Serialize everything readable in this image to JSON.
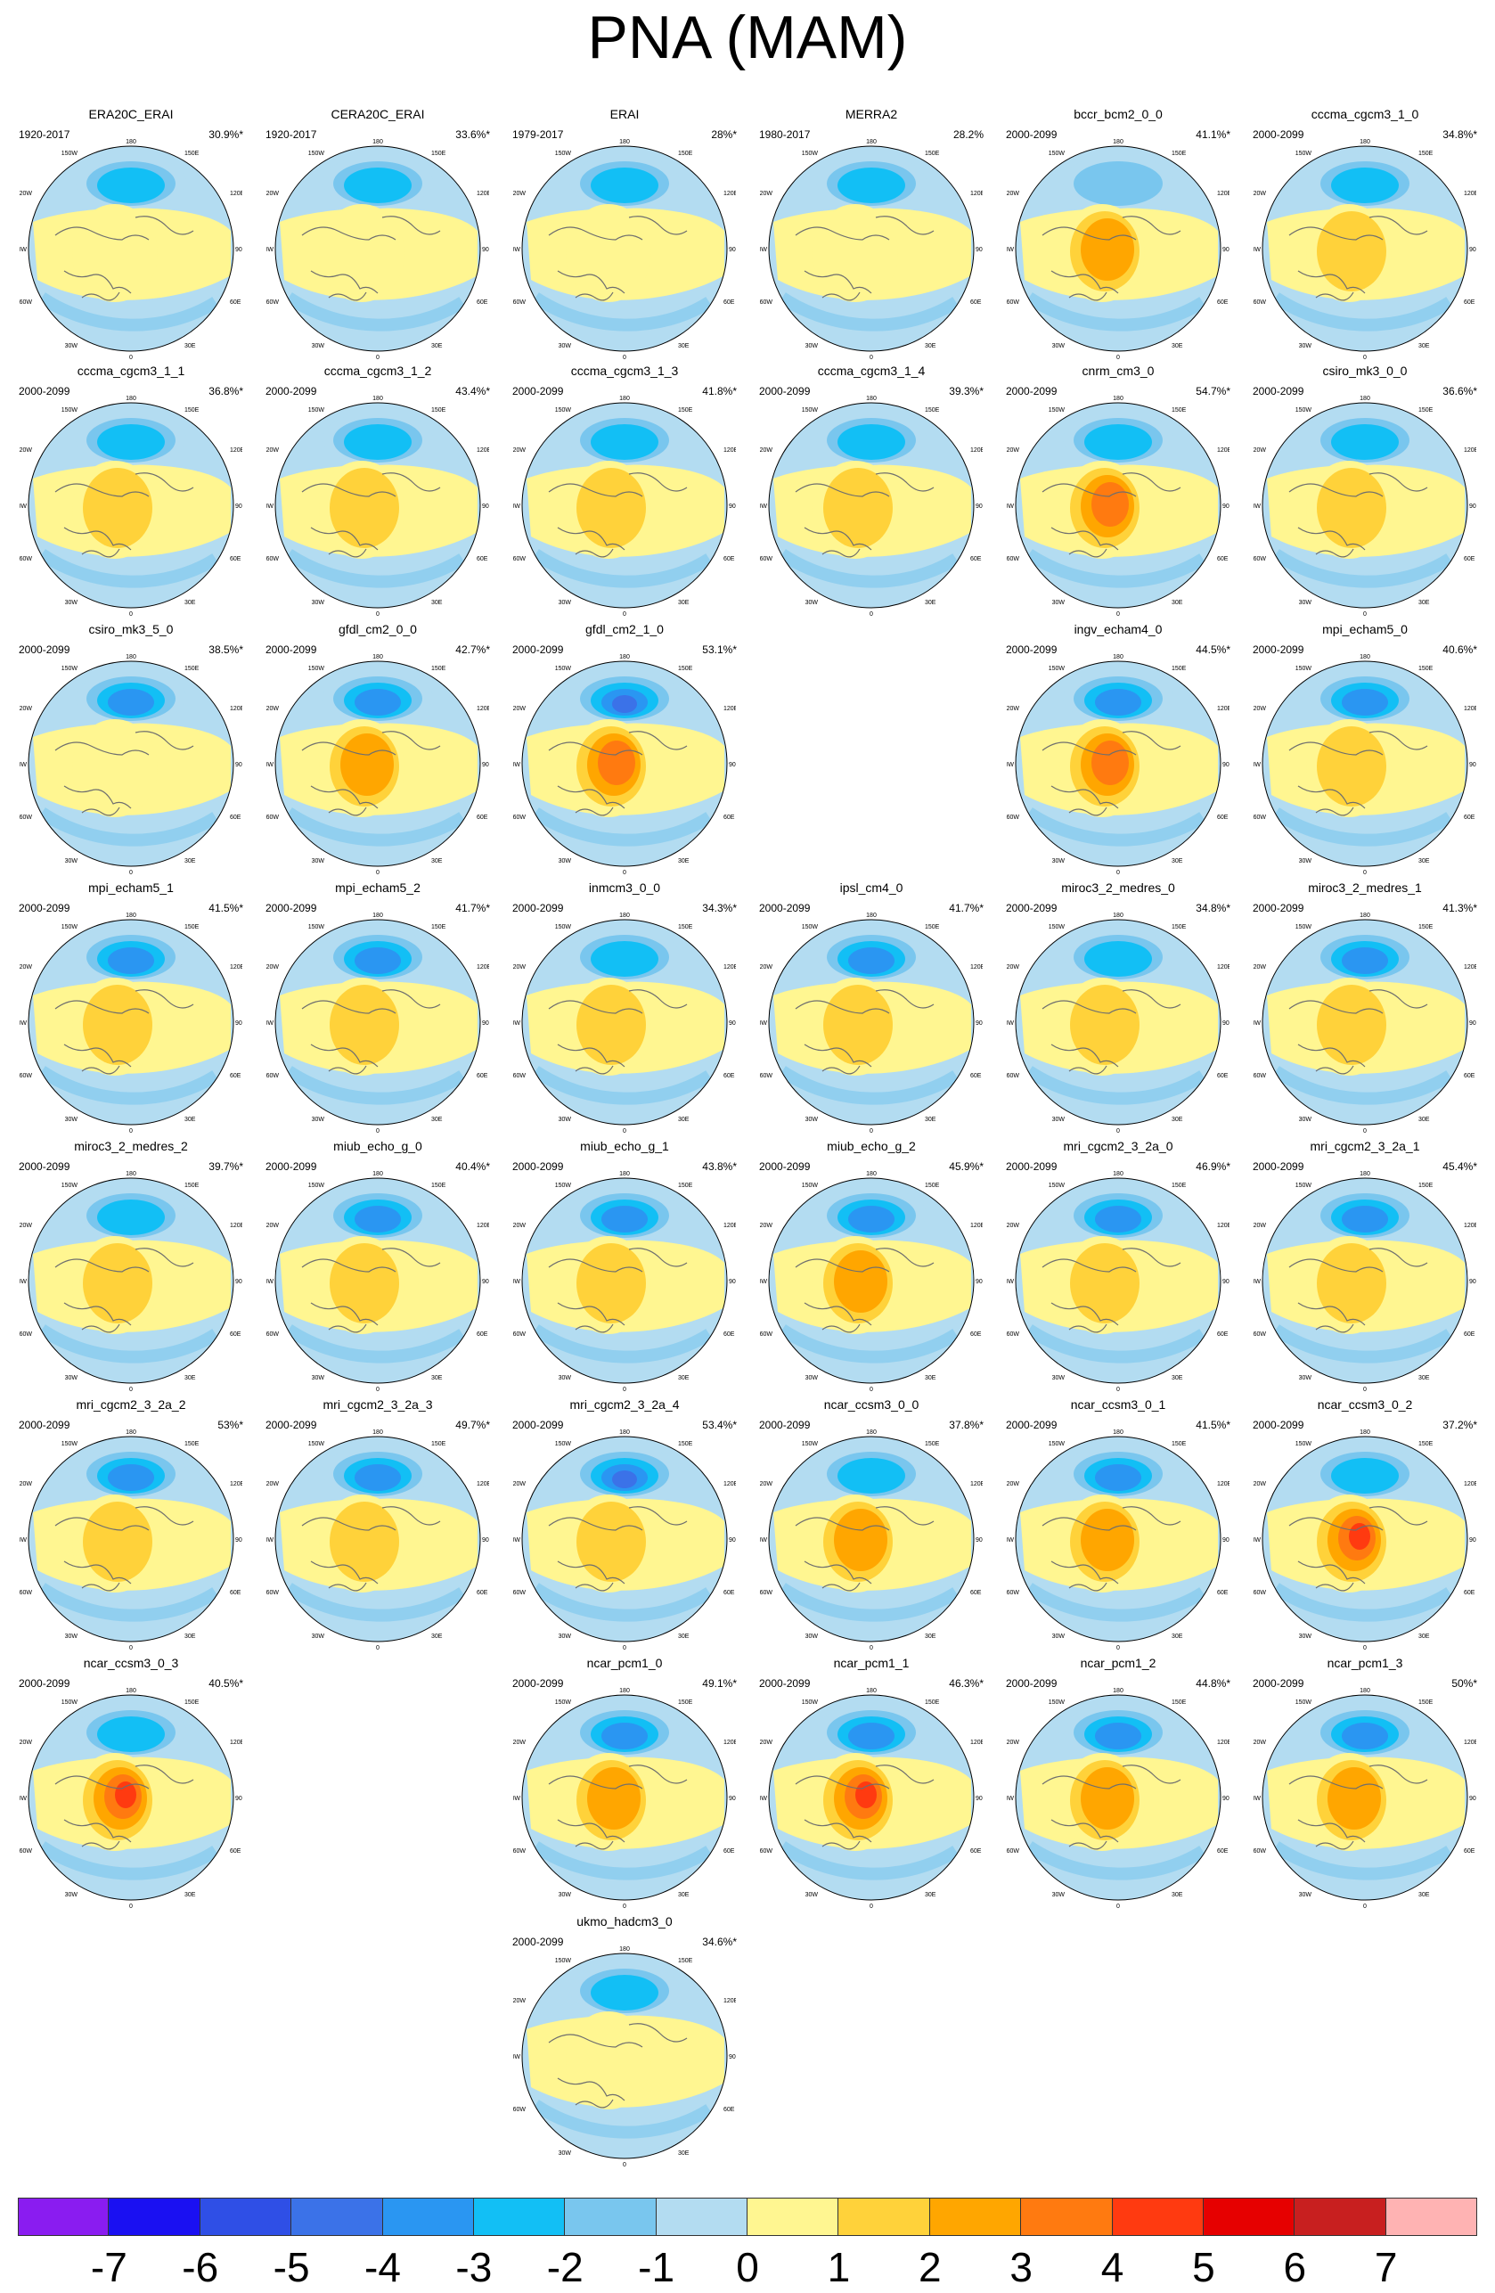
{
  "title": "PNA (MAM)",
  "colors": {
    "land_outline": "#6e6e6e",
    "map_border": "#000000",
    "levels": [
      "#8a1cf0",
      "#1a10f2",
      "#2f4fe6",
      "#3b72e8",
      "#2a96f2",
      "#12bff5",
      "#79c6ee",
      "#b3dcf1",
      "#fff691",
      "#ffd23a",
      "#ffa600",
      "#ff7a10",
      "#ff3a10",
      "#e60000",
      "#c81f1f",
      "#ffb3b3"
    ]
  },
  "chart_data": {
    "type": "heatmap",
    "description_visible": "Polar stereographic maps of the PNA pattern for each dataset",
    "colorbar": {
      "labels": [
        "-7",
        "-6",
        "-5",
        "-4",
        "-3",
        "-2",
        "-1",
        "0",
        "1",
        "2",
        "3",
        "4",
        "5",
        "6",
        "7"
      ]
    },
    "map_labels": {
      "top": "180",
      "top_left": "150W",
      "top_right": "150E",
      "upper_left": "120W",
      "upper_right": "120E",
      "left": "90W",
      "right": "90E",
      "lower_left": "60W",
      "lower_right": "60E",
      "bottom_left": "30W",
      "bottom_right": "30E",
      "bottom": "0"
    },
    "panels": [
      {
        "name": "ERA20C_ERAI",
        "years": "1920-2017",
        "pct": "30.9%*",
        "row": 0,
        "col": 0,
        "neg": 3,
        "pos": 1
      },
      {
        "name": "CERA20C_ERAI",
        "years": "1920-2017",
        "pct": "33.6%*",
        "row": 0,
        "col": 1,
        "neg": 3,
        "pos": 1
      },
      {
        "name": "ERAI",
        "years": "1979-2017",
        "pct": "28%*",
        "row": 0,
        "col": 2,
        "neg": 3,
        "pos": 1
      },
      {
        "name": "MERRA2",
        "years": "1980-2017",
        "pct": "28.2%",
        "row": 0,
        "col": 3,
        "neg": 3,
        "pos": 1
      },
      {
        "name": "bccr_bcm2_0_0",
        "years": "2000-2099",
        "pct": "41.1%*",
        "row": 0,
        "col": 4,
        "neg": 2,
        "pos": 3
      },
      {
        "name": "cccma_cgcm3_1_0",
        "years": "2000-2099",
        "pct": "34.8%*",
        "row": 0,
        "col": 5,
        "neg": 3,
        "pos": 2
      },
      {
        "name": "cccma_cgcm3_1_1",
        "years": "2000-2099",
        "pct": "36.8%*",
        "row": 1,
        "col": 0,
        "neg": 3,
        "pos": 2
      },
      {
        "name": "cccma_cgcm3_1_2",
        "years": "2000-2099",
        "pct": "43.4%*",
        "row": 1,
        "col": 1,
        "neg": 3,
        "pos": 2
      },
      {
        "name": "cccma_cgcm3_1_3",
        "years": "2000-2099",
        "pct": "41.8%*",
        "row": 1,
        "col": 2,
        "neg": 3,
        "pos": 2
      },
      {
        "name": "cccma_cgcm3_1_4",
        "years": "2000-2099",
        "pct": "39.3%*",
        "row": 1,
        "col": 3,
        "neg": 3,
        "pos": 2
      },
      {
        "name": "cnrm_cm3_0",
        "years": "2000-2099",
        "pct": "54.7%*",
        "row": 1,
        "col": 4,
        "neg": 3,
        "pos": 4
      },
      {
        "name": "csiro_mk3_0_0",
        "years": "2000-2099",
        "pct": "36.6%*",
        "row": 1,
        "col": 5,
        "neg": 3,
        "pos": 2
      },
      {
        "name": "csiro_mk3_5_0",
        "years": "2000-2099",
        "pct": "38.5%*",
        "row": 2,
        "col": 0,
        "neg": 4,
        "pos": 1
      },
      {
        "name": "gfdl_cm2_0_0",
        "years": "2000-2099",
        "pct": "42.7%*",
        "row": 2,
        "col": 1,
        "neg": 4,
        "pos": 3
      },
      {
        "name": "gfdl_cm2_1_0",
        "years": "2000-2099",
        "pct": "53.1%*",
        "row": 2,
        "col": 2,
        "neg": 5,
        "pos": 4
      },
      {
        "name": "ingv_echam4_0",
        "years": "2000-2099",
        "pct": "44.5%*",
        "row": 2,
        "col": 4,
        "neg": 4,
        "pos": 4
      },
      {
        "name": "mpi_echam5_0",
        "years": "2000-2099",
        "pct": "40.6%*",
        "row": 2,
        "col": 5,
        "neg": 4,
        "pos": 2
      },
      {
        "name": "mpi_echam5_1",
        "years": "2000-2099",
        "pct": "41.5%*",
        "row": 3,
        "col": 0,
        "neg": 4,
        "pos": 2
      },
      {
        "name": "mpi_echam5_2",
        "years": "2000-2099",
        "pct": "41.7%*",
        "row": 3,
        "col": 1,
        "neg": 4,
        "pos": 2
      },
      {
        "name": "inmcm3_0_0",
        "years": "2000-2099",
        "pct": "34.3%*",
        "row": 3,
        "col": 2,
        "neg": 3,
        "pos": 2
      },
      {
        "name": "ipsl_cm4_0",
        "years": "2000-2099",
        "pct": "41.7%*",
        "row": 3,
        "col": 3,
        "neg": 4,
        "pos": 2
      },
      {
        "name": "miroc3_2_medres_0",
        "years": "2000-2099",
        "pct": "34.8%*",
        "row": 3,
        "col": 4,
        "neg": 3,
        "pos": 2
      },
      {
        "name": "miroc3_2_medres_1",
        "years": "2000-2099",
        "pct": "41.3%*",
        "row": 3,
        "col": 5,
        "neg": 4,
        "pos": 2
      },
      {
        "name": "miroc3_2_medres_2",
        "years": "2000-2099",
        "pct": "39.7%*",
        "row": 4,
        "col": 0,
        "neg": 3,
        "pos": 2
      },
      {
        "name": "miub_echo_g_0",
        "years": "2000-2099",
        "pct": "40.4%*",
        "row": 4,
        "col": 1,
        "neg": 4,
        "pos": 2
      },
      {
        "name": "miub_echo_g_1",
        "years": "2000-2099",
        "pct": "43.8%*",
        "row": 4,
        "col": 2,
        "neg": 4,
        "pos": 2
      },
      {
        "name": "miub_echo_g_2",
        "years": "2000-2099",
        "pct": "45.9%*",
        "row": 4,
        "col": 3,
        "neg": 4,
        "pos": 3
      },
      {
        "name": "mri_cgcm2_3_2a_0",
        "years": "2000-2099",
        "pct": "46.9%*",
        "row": 4,
        "col": 4,
        "neg": 4,
        "pos": 2
      },
      {
        "name": "mri_cgcm2_3_2a_1",
        "years": "2000-2099",
        "pct": "45.4%*",
        "row": 4,
        "col": 5,
        "neg": 4,
        "pos": 2
      },
      {
        "name": "mri_cgcm2_3_2a_2",
        "years": "2000-2099",
        "pct": "53%*",
        "row": 5,
        "col": 0,
        "neg": 4,
        "pos": 2
      },
      {
        "name": "mri_cgcm2_3_2a_3",
        "years": "2000-2099",
        "pct": "49.7%*",
        "row": 5,
        "col": 1,
        "neg": 4,
        "pos": 2
      },
      {
        "name": "mri_cgcm2_3_2a_4",
        "years": "2000-2099",
        "pct": "53.4%*",
        "row": 5,
        "col": 2,
        "neg": 5,
        "pos": 2
      },
      {
        "name": "ncar_ccsm3_0_0",
        "years": "2000-2099",
        "pct": "37.8%*",
        "row": 5,
        "col": 3,
        "neg": 3,
        "pos": 3
      },
      {
        "name": "ncar_ccsm3_0_1",
        "years": "2000-2099",
        "pct": "41.5%*",
        "row": 5,
        "col": 4,
        "neg": 4,
        "pos": 3
      },
      {
        "name": "ncar_ccsm3_0_2",
        "years": "2000-2099",
        "pct": "37.2%*",
        "row": 5,
        "col": 5,
        "neg": 3,
        "pos": 5
      },
      {
        "name": "ncar_ccsm3_0_3",
        "years": "2000-2099",
        "pct": "40.5%*",
        "row": 6,
        "col": 0,
        "neg": 3,
        "pos": 5
      },
      {
        "name": "ncar_pcm1_0",
        "years": "2000-2099",
        "pct": "49.1%*",
        "row": 6,
        "col": 2,
        "neg": 4,
        "pos": 3
      },
      {
        "name": "ncar_pcm1_1",
        "years": "2000-2099",
        "pct": "46.3%*",
        "row": 6,
        "col": 3,
        "neg": 4,
        "pos": 5
      },
      {
        "name": "ncar_pcm1_2",
        "years": "2000-2099",
        "pct": "44.8%*",
        "row": 6,
        "col": 4,
        "neg": 4,
        "pos": 3
      },
      {
        "name": "ncar_pcm1_3",
        "years": "2000-2099",
        "pct": "50%*",
        "row": 6,
        "col": 5,
        "neg": 4,
        "pos": 3
      },
      {
        "name": "ukmo_hadcm3_0",
        "years": "2000-2099",
        "pct": "34.6%*",
        "row": 7,
        "col": 2,
        "neg": 3,
        "pos": 1
      }
    ]
  }
}
